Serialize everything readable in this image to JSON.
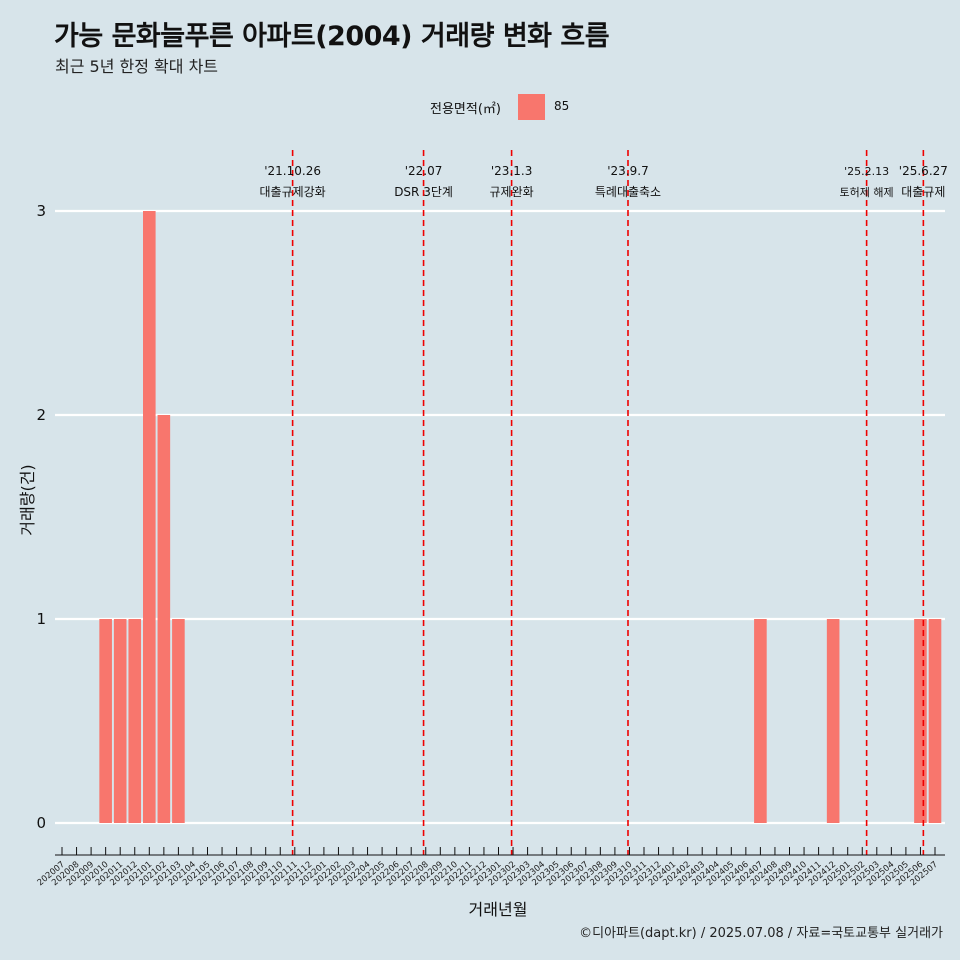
{
  "title": "가능 문화늘푸른 아파트(2004) 거래량 변화 흐름",
  "subtitle": "최근 5년 한정 확대 차트",
  "caption": "©디아파트(dapt.kr) / 2025.07.08 / 자료=국토교통부 실거래가",
  "legend": {
    "title": "전용면적(㎡)",
    "label": "85",
    "color": "#f8766d"
  },
  "chart_data": {
    "type": "bar",
    "xlabel": "거래년월",
    "ylabel": "거래량(건)",
    "ylim": [
      0,
      3
    ],
    "yticks": [
      0,
      1,
      2,
      3
    ],
    "grid": true,
    "legend_position": "top",
    "categories": [
      "202007",
      "202008",
      "202009",
      "202010",
      "202011",
      "202012",
      "202101",
      "202102",
      "202103",
      "202104",
      "202105",
      "202106",
      "202107",
      "202108",
      "202109",
      "202110",
      "202111",
      "202112",
      "202201",
      "202202",
      "202203",
      "202204",
      "202205",
      "202206",
      "202207",
      "202208",
      "202209",
      "202210",
      "202211",
      "202212",
      "202301",
      "202302",
      "202303",
      "202304",
      "202305",
      "202306",
      "202307",
      "202308",
      "202309",
      "202310",
      "202311",
      "202312",
      "202401",
      "202402",
      "202403",
      "202404",
      "202405",
      "202406",
      "202407",
      "202408",
      "202409",
      "202410",
      "202411",
      "202412",
      "202501",
      "202502",
      "202503",
      "202504",
      "202505",
      "202506",
      "202507"
    ],
    "series": [
      {
        "name": "85",
        "color": "#f8766d",
        "values": [
          0,
          0,
          0,
          1,
          1,
          1,
          3,
          2,
          1,
          0,
          0,
          0,
          0,
          0,
          0,
          0,
          0,
          0,
          0,
          0,
          0,
          0,
          0,
          0,
          0,
          0,
          0,
          0,
          0,
          0,
          0,
          0,
          0,
          0,
          0,
          0,
          0,
          0,
          0,
          0,
          0,
          0,
          0,
          0,
          0,
          0,
          0,
          0,
          1,
          0,
          0,
          0,
          0,
          1,
          0,
          0,
          0,
          0,
          0,
          1,
          1
        ]
      }
    ],
    "annotations": [
      {
        "date": "'21.10.26",
        "label": "대출규제강화",
        "position": 15.85,
        "small": false
      },
      {
        "date": "'22.07",
        "label": "DSR 3단계",
        "position": 24.85,
        "small": false
      },
      {
        "date": "'23.1.3",
        "label": "규제완화",
        "position": 30.9,
        "small": false
      },
      {
        "date": "'23.9.7",
        "label": "특례대출축소",
        "position": 38.9,
        "small": false
      },
      {
        "date": "'25.2.13",
        "label": "토허제 해제",
        "position": 55.3,
        "small": true
      },
      {
        "date": "'25.6.27",
        "label": "대출규제",
        "position": 59.2,
        "small": false
      }
    ]
  }
}
